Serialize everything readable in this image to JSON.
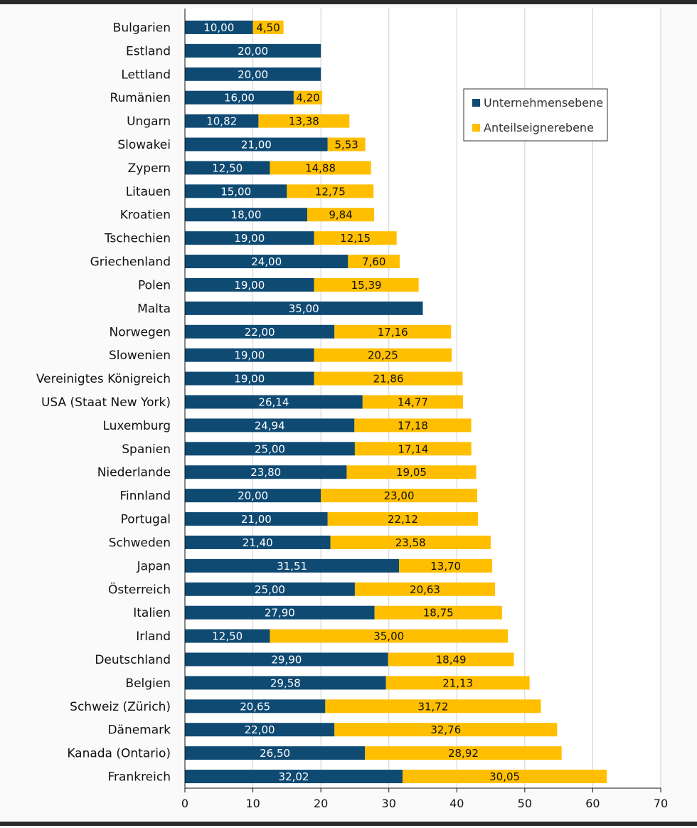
{
  "chart_data": {
    "type": "bar",
    "orientation": "horizontal",
    "stacked": true,
    "categories": [
      "Bulgarien",
      "Estland",
      "Lettland",
      "Rumänien",
      "Ungarn",
      "Slowakei",
      "Zypern",
      "Litauen",
      "Kroatien",
      "Tschechien",
      "Griechenland",
      "Polen",
      "Malta",
      "Norwegen",
      "Slowenien",
      "Vereinigtes Königreich",
      "USA (Staat New York)",
      "Luxemburg",
      "Spanien",
      "Niederlande",
      "Finnland",
      "Portugal",
      "Schweden",
      "Japan",
      "Österreich",
      "Italien",
      "Irland",
      "Deutschland",
      "Belgien",
      "Schweiz (Zürich)",
      "Dänemark",
      "Kanada (Ontario)",
      "Frankreich"
    ],
    "series": [
      {
        "name": "Unternehmensebene",
        "color": "#0f4a73",
        "values": [
          10.0,
          20.0,
          20.0,
          16.0,
          10.82,
          21.0,
          12.5,
          15.0,
          18.0,
          19.0,
          24.0,
          19.0,
          35.0,
          22.0,
          19.0,
          19.0,
          26.14,
          24.94,
          25.0,
          23.8,
          20.0,
          21.0,
          21.4,
          31.51,
          25.0,
          27.9,
          12.5,
          29.9,
          29.58,
          20.65,
          22.0,
          26.5,
          32.02
        ],
        "labels": [
          "10,00",
          "20,00",
          "20,00",
          "16,00",
          "10,82",
          "21,00",
          "12,50",
          "15,00",
          "18,00",
          "19,00",
          "24,00",
          "19,00",
          "35,00",
          "22,00",
          "19,00",
          "19,00",
          "26,14",
          "24,94",
          "25,00",
          "23,80",
          "20,00",
          "21,00",
          "21,40",
          "31,51",
          "25,00",
          "27,90",
          "12,50",
          "29,90",
          "29,58",
          "20,65",
          "22,00",
          "26,50",
          "32,02"
        ]
      },
      {
        "name": "Anteilseignerebene",
        "color": "#ffbf00",
        "values": [
          4.5,
          null,
          null,
          4.2,
          13.38,
          5.53,
          14.88,
          12.75,
          9.84,
          12.15,
          7.6,
          15.39,
          null,
          17.16,
          20.25,
          21.86,
          14.77,
          17.18,
          17.14,
          19.05,
          23.0,
          22.12,
          23.58,
          13.7,
          20.63,
          18.75,
          35.0,
          18.49,
          21.13,
          31.72,
          32.76,
          28.92,
          30.05
        ],
        "labels": [
          "4,50",
          "",
          "",
          "4,20",
          "13,38",
          "5,53",
          "14,88",
          "12,75",
          "9,84",
          "12,15",
          "7,60",
          "15,39",
          "",
          "17,16",
          "20,25",
          "21,86",
          "14,77",
          "17,18",
          "17,14",
          "19,05",
          "23,00",
          "22,12",
          "23,58",
          "13,70",
          "20,63",
          "18,75",
          "35,00",
          "18,49",
          "21,13",
          "31,72",
          "32,76",
          "28,92",
          "30,05"
        ]
      }
    ],
    "xlim": [
      0,
      70
    ],
    "xticks": [
      0,
      10,
      20,
      30,
      40,
      50,
      60,
      70
    ],
    "xtick_labels": [
      "0",
      "10",
      "20",
      "30",
      "40",
      "50",
      "60",
      "70"
    ],
    "grid": "vertical",
    "legend": {
      "position": "top-right",
      "entries": [
        "Unternehmensebene",
        "Anteilseignerebene"
      ]
    },
    "title": "",
    "xlabel": "",
    "ylabel": ""
  }
}
